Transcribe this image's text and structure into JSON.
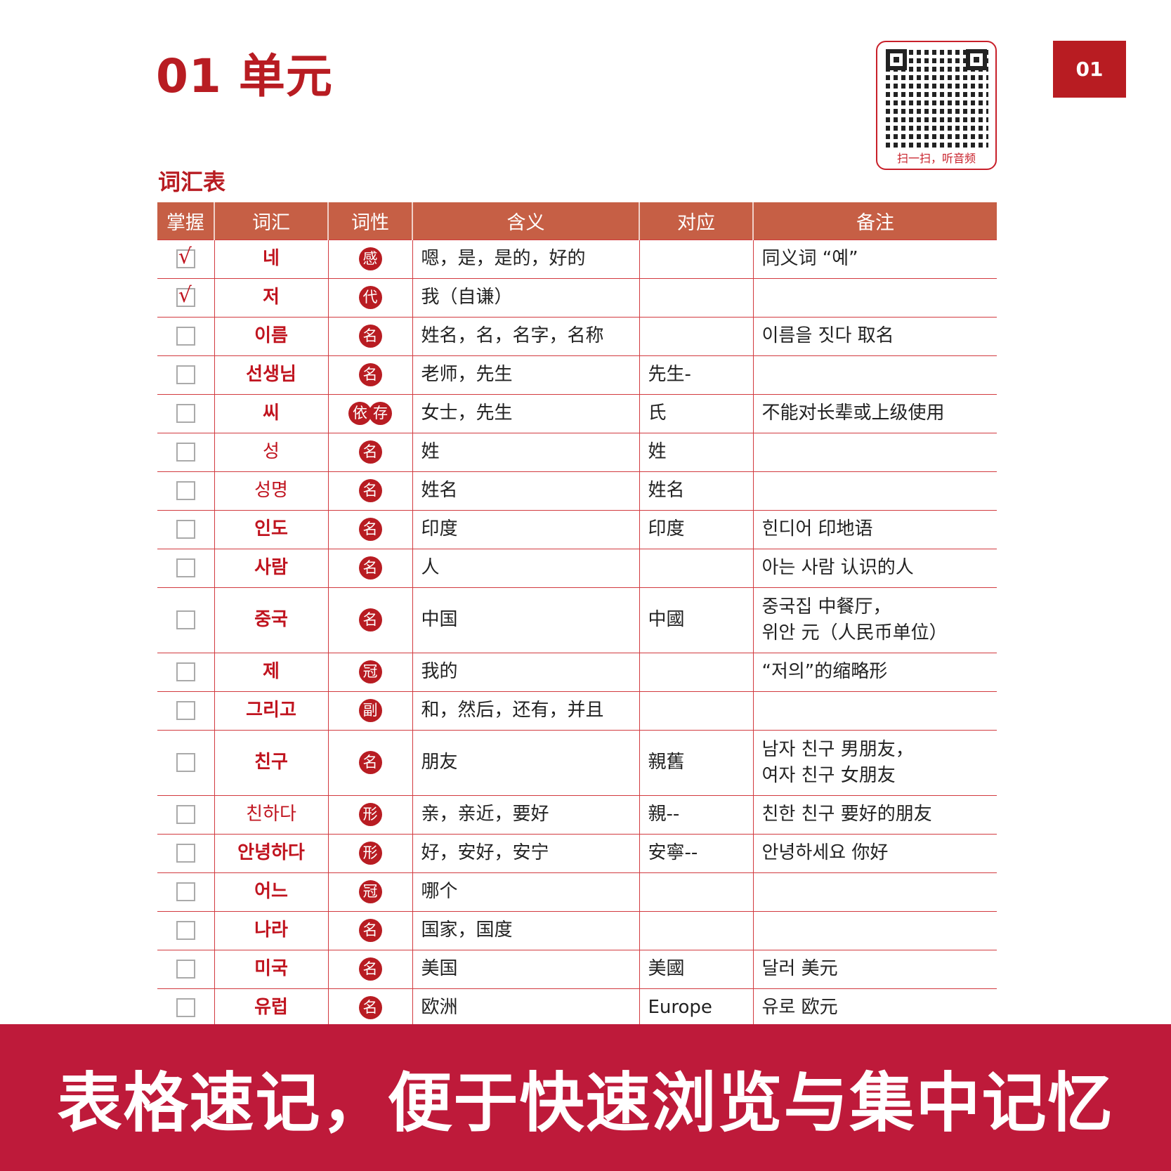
{
  "header": {
    "title": "01 单元",
    "page_number": "01",
    "section_title": "词汇表",
    "qr_caption": "扫一扫，听音频"
  },
  "table": {
    "columns": [
      "掌握",
      "词汇",
      "词性",
      "含义",
      "对应",
      "备注"
    ],
    "rows": [
      {
        "checked": true,
        "word": "네",
        "bold": true,
        "pos": [
          "感"
        ],
        "meaning": "嗯，是，是的，好的",
        "hanja": "",
        "note": "同义词 “예”"
      },
      {
        "checked": true,
        "word": "저",
        "bold": true,
        "pos": [
          "代"
        ],
        "meaning": "我（自谦）",
        "hanja": "",
        "note": ""
      },
      {
        "checked": false,
        "word": "이름",
        "bold": true,
        "pos": [
          "名"
        ],
        "meaning": "姓名，名，名字，名称",
        "hanja": "",
        "note": "이름을 짓다 取名"
      },
      {
        "checked": false,
        "word": "선생님",
        "bold": true,
        "pos": [
          "名"
        ],
        "meaning": "老师，先生",
        "hanja": "先生-",
        "note": ""
      },
      {
        "checked": false,
        "word": "씨",
        "bold": true,
        "pos": [
          "依",
          "存"
        ],
        "meaning": "女士，先生",
        "hanja": "氏",
        "note": "不能对长辈或上级使用"
      },
      {
        "checked": false,
        "word": "성",
        "bold": false,
        "pos": [
          "名"
        ],
        "meaning": "姓",
        "hanja": "姓",
        "note": ""
      },
      {
        "checked": false,
        "word": "성명",
        "bold": false,
        "pos": [
          "名"
        ],
        "meaning": "姓名",
        "hanja": "姓名",
        "note": ""
      },
      {
        "checked": false,
        "word": "인도",
        "bold": true,
        "pos": [
          "名"
        ],
        "meaning": "印度",
        "hanja": "印度",
        "note": "힌디어 印地语"
      },
      {
        "checked": false,
        "word": "사람",
        "bold": true,
        "pos": [
          "名"
        ],
        "meaning": "人",
        "hanja": "",
        "note": "아는 사람 认识的人"
      },
      {
        "checked": false,
        "word": "중국",
        "bold": true,
        "pos": [
          "名"
        ],
        "meaning": "中国",
        "hanja": "中國",
        "note": "중국집 中餐厅，\n위안 元（人民币单位）",
        "tall": true
      },
      {
        "checked": false,
        "word": "제",
        "bold": true,
        "pos": [
          "冠"
        ],
        "meaning": "我的",
        "hanja": "",
        "note": "“저의”的缩略形"
      },
      {
        "checked": false,
        "word": "그리고",
        "bold": true,
        "pos": [
          "副"
        ],
        "meaning": "和，然后，还有，并且",
        "hanja": "",
        "note": ""
      },
      {
        "checked": false,
        "word": "친구",
        "bold": true,
        "pos": [
          "名"
        ],
        "meaning": "朋友",
        "hanja": "親舊",
        "note": "남자 친구 男朋友，\n여자 친구 女朋友",
        "tall": true
      },
      {
        "checked": false,
        "word": "친하다",
        "bold": false,
        "pos": [
          "形"
        ],
        "meaning": "亲，亲近，要好",
        "hanja": "親--",
        "note": "친한 친구 要好的朋友"
      },
      {
        "checked": false,
        "word": "안녕하다",
        "bold": true,
        "pos": [
          "形"
        ],
        "meaning": "好，安好，安宁",
        "hanja": "安寧--",
        "note": "안녕하세요 你好"
      },
      {
        "checked": false,
        "word": "어느",
        "bold": true,
        "pos": [
          "冠"
        ],
        "meaning": "哪个",
        "hanja": "",
        "note": ""
      },
      {
        "checked": false,
        "word": "나라",
        "bold": true,
        "pos": [
          "名"
        ],
        "meaning": "国家，国度",
        "hanja": "",
        "note": ""
      },
      {
        "checked": false,
        "word": "미국",
        "bold": true,
        "pos": [
          "名"
        ],
        "meaning": "美国",
        "hanja": "美國",
        "note": "달러 美元"
      },
      {
        "checked": false,
        "word": "유럽",
        "bold": true,
        "pos": [
          "名"
        ],
        "meaning": "欧洲",
        "hanja": "Europe",
        "note": "유로 欧元"
      }
    ]
  },
  "banner": {
    "text": "表格速记，便于快速浏览与集中记忆"
  },
  "colors": {
    "brand_red": "#b81c22",
    "header_bg": "#c65f45",
    "banner_bg": "#be1a3a"
  }
}
